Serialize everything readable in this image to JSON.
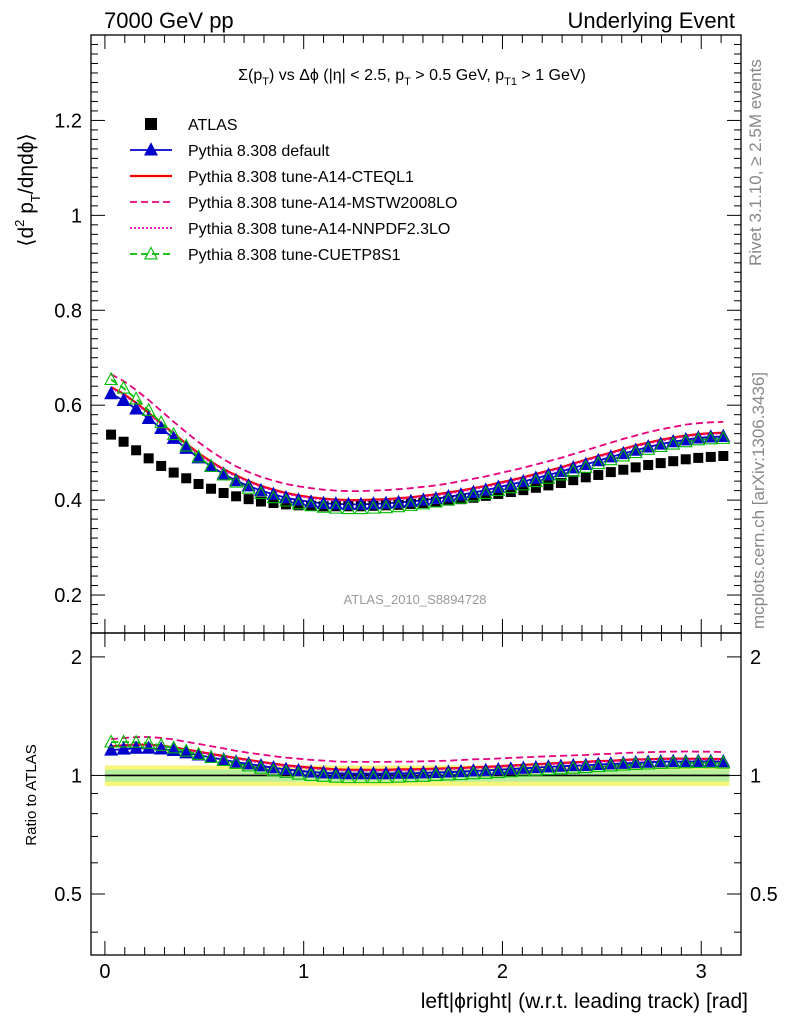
{
  "header": {
    "left": "7000 GeV pp",
    "right": "Underlying Event",
    "side_rivet": "Rivet 3.1.10, ≥ 2.5M events",
    "side_mcplots": "mcplots.cern.ch [arXiv:1306.3436]"
  },
  "chart_data": {
    "type": "line",
    "title": "Σ(p_T) vs Δφ (|η| < 2.5, p_T > 0.5 GeV, p_T1 > 1 GeV)",
    "watermark": "ATLAS_2010_S8894728",
    "xlabel": "left|ϕright| (w.r.t. leading track) [rad]",
    "ylabel": "⟨d² p_T/dηdϕ⟩",
    "ratio_ylabel": "Ratio to ATLAS",
    "xlim": [
      -0.07,
      3.2
    ],
    "ylim": [
      0.12,
      1.38
    ],
    "ratio_ylim": [
      0.35,
      2.3
    ],
    "x_ticks": [
      "0",
      "1",
      "2",
      "3"
    ],
    "y_ticks": [
      "0.2",
      "0.4",
      "0.6",
      "0.8",
      "1",
      "1.2"
    ],
    "ratio_ticks": [
      "0.5",
      "1",
      "2"
    ],
    "x": [
      0.031,
      0.094,
      0.157,
      0.22,
      0.283,
      0.346,
      0.409,
      0.471,
      0.534,
      0.597,
      0.66,
      0.723,
      0.785,
      0.848,
      0.911,
      0.974,
      1.037,
      1.1,
      1.162,
      1.225,
      1.288,
      1.351,
      1.414,
      1.477,
      1.539,
      1.602,
      1.665,
      1.728,
      1.791,
      1.854,
      1.916,
      1.979,
      2.042,
      2.105,
      2.168,
      2.231,
      2.294,
      2.356,
      2.419,
      2.482,
      2.545,
      2.608,
      2.67,
      2.733,
      2.796,
      2.859,
      2.922,
      2.985,
      3.048,
      3.111
    ],
    "legend": [
      {
        "name": "ATLAS",
        "color": "#000000",
        "style": "square"
      },
      {
        "name": "Pythia 8.308 default",
        "color": "#0000cc",
        "style": "solid-triangle"
      },
      {
        "name": "Pythia 8.308 tune-A14-CTEQL1",
        "color": "#ee0000",
        "style": "solid"
      },
      {
        "name": "Pythia 8.308 tune-A14-MSTW2008LO",
        "color": "#e6007e",
        "style": "dashed"
      },
      {
        "name": "Pythia 8.308 tune-A14-NNPDF2.3LO",
        "color": "#e600b4",
        "style": "dotted"
      },
      {
        "name": "Pythia 8.308 tune-CUETP8S1",
        "color": "#00bb00",
        "style": "dashed-open-triangle"
      }
    ],
    "series": [
      {
        "name": "ATLAS",
        "values": [
          0.538,
          0.523,
          0.505,
          0.488,
          0.472,
          0.458,
          0.446,
          0.434,
          0.424,
          0.415,
          0.408,
          0.402,
          0.397,
          0.394,
          0.391,
          0.389,
          0.388,
          0.387,
          0.387,
          0.387,
          0.387,
          0.388,
          0.389,
          0.39,
          0.392,
          0.394,
          0.396,
          0.399,
          0.402,
          0.405,
          0.409,
          0.413,
          0.417,
          0.421,
          0.426,
          0.431,
          0.436,
          0.442,
          0.448,
          0.453,
          0.459,
          0.464,
          0.469,
          0.474,
          0.478,
          0.482,
          0.486,
          0.489,
          0.491,
          0.493
        ]
      },
      {
        "name": "Pythia 8.308 default",
        "values": [
          0.624,
          0.61,
          0.592,
          0.572,
          0.551,
          0.53,
          0.509,
          0.489,
          0.471,
          0.455,
          0.441,
          0.43,
          0.42,
          0.412,
          0.405,
          0.4,
          0.396,
          0.393,
          0.392,
          0.391,
          0.391,
          0.392,
          0.393,
          0.395,
          0.397,
          0.4,
          0.403,
          0.407,
          0.411,
          0.416,
          0.421,
          0.427,
          0.433,
          0.439,
          0.446,
          0.453,
          0.46,
          0.468,
          0.475,
          0.483,
          0.491,
          0.498,
          0.505,
          0.512,
          0.518,
          0.523,
          0.527,
          0.531,
          0.533,
          0.534
        ]
      },
      {
        "name": "Pythia 8.308 tune-A14-CTEQL1",
        "values": [
          0.638,
          0.624,
          0.605,
          0.584,
          0.562,
          0.54,
          0.519,
          0.499,
          0.481,
          0.465,
          0.452,
          0.44,
          0.43,
          0.422,
          0.415,
          0.41,
          0.406,
          0.403,
          0.401,
          0.4,
          0.4,
          0.401,
          0.402,
          0.404,
          0.406,
          0.409,
          0.412,
          0.416,
          0.42,
          0.425,
          0.43,
          0.436,
          0.442,
          0.448,
          0.455,
          0.462,
          0.469,
          0.477,
          0.485,
          0.493,
          0.5,
          0.508,
          0.515,
          0.521,
          0.527,
          0.532,
          0.536,
          0.539,
          0.541,
          0.542
        ]
      },
      {
        "name": "Pythia 8.308 tune-A14-MSTW2008LO",
        "values": [
          0.665,
          0.651,
          0.632,
          0.611,
          0.588,
          0.565,
          0.543,
          0.522,
          0.503,
          0.486,
          0.471,
          0.459,
          0.449,
          0.441,
          0.434,
          0.429,
          0.425,
          0.422,
          0.42,
          0.419,
          0.419,
          0.42,
          0.421,
          0.423,
          0.425,
          0.428,
          0.431,
          0.435,
          0.44,
          0.445,
          0.45,
          0.456,
          0.462,
          0.468,
          0.475,
          0.482,
          0.489,
          0.497,
          0.505,
          0.513,
          0.521,
          0.529,
          0.536,
          0.543,
          0.549,
          0.554,
          0.559,
          0.562,
          0.564,
          0.565
        ]
      },
      {
        "name": "Pythia 8.308 tune-A14-NNPDF2.3LO",
        "values": [
          0.636,
          0.622,
          0.603,
          0.582,
          0.56,
          0.538,
          0.517,
          0.497,
          0.479,
          0.463,
          0.45,
          0.438,
          0.428,
          0.42,
          0.413,
          0.408,
          0.404,
          0.401,
          0.399,
          0.398,
          0.398,
          0.399,
          0.4,
          0.402,
          0.404,
          0.407,
          0.41,
          0.414,
          0.418,
          0.423,
          0.428,
          0.434,
          0.44,
          0.446,
          0.453,
          0.46,
          0.467,
          0.475,
          0.483,
          0.491,
          0.498,
          0.506,
          0.513,
          0.519,
          0.525,
          0.53,
          0.534,
          0.537,
          0.539,
          0.54
        ]
      },
      {
        "name": "Pythia 8.308 tune-CUETP8S1",
        "values": [
          0.654,
          0.636,
          0.613,
          0.589,
          0.563,
          0.538,
          0.514,
          0.491,
          0.471,
          0.453,
          0.438,
          0.425,
          0.414,
          0.405,
          0.398,
          0.392,
          0.388,
          0.385,
          0.383,
          0.382,
          0.382,
          0.383,
          0.384,
          0.386,
          0.389,
          0.392,
          0.396,
          0.4,
          0.404,
          0.409,
          0.414,
          0.42,
          0.426,
          0.432,
          0.439,
          0.446,
          0.453,
          0.461,
          0.469,
          0.477,
          0.485,
          0.493,
          0.5,
          0.507,
          0.513,
          0.518,
          0.523,
          0.527,
          0.529,
          0.53
        ]
      }
    ],
    "band_colors": {
      "outer": "#f7f57a",
      "inner": "#b8eea0"
    },
    "band_halfwidth": [
      0.06,
      0.035
    ]
  }
}
